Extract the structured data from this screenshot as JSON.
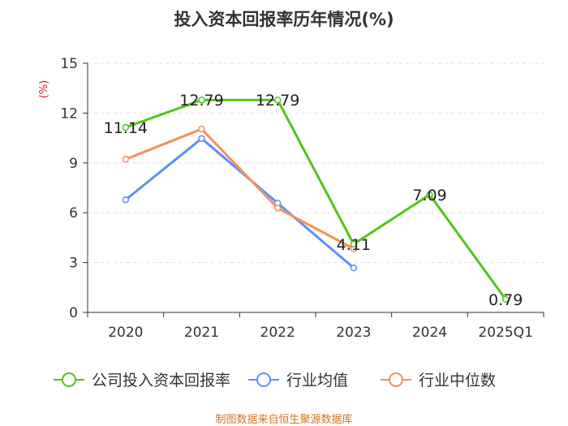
{
  "chart_data": {
    "type": "line",
    "title": "投入资本回报率历年情况(%)",
    "ylabel": "(%)",
    "ylim": [
      0,
      15
    ],
    "yticks": [
      0,
      3,
      6,
      9,
      12,
      15
    ],
    "categories": [
      "2020",
      "2021",
      "2022",
      "2023",
      "2024",
      "2025Q1"
    ],
    "series": [
      {
        "name": "公司投入资本回报率",
        "color": "#52c41a",
        "values": [
          11.14,
          12.79,
          12.79,
          4.11,
          7.09,
          0.79
        ],
        "show_labels": true
      },
      {
        "name": "行业均值",
        "color": "#5b8ff9",
        "values": [
          6.78,
          10.47,
          6.58,
          2.68,
          null,
          null
        ],
        "show_labels": false
      },
      {
        "name": "行业中位数",
        "color": "#f6905a",
        "values": [
          9.22,
          11.04,
          6.28,
          3.83,
          null,
          null
        ],
        "show_labels": false
      }
    ],
    "data_labels": [
      "11.14",
      "12.79",
      "12.79",
      "4.11",
      "7.09",
      "0.79"
    ],
    "legend_position": "bottom",
    "grid": true
  },
  "source": "制图数据来自恒生聚源数据库"
}
